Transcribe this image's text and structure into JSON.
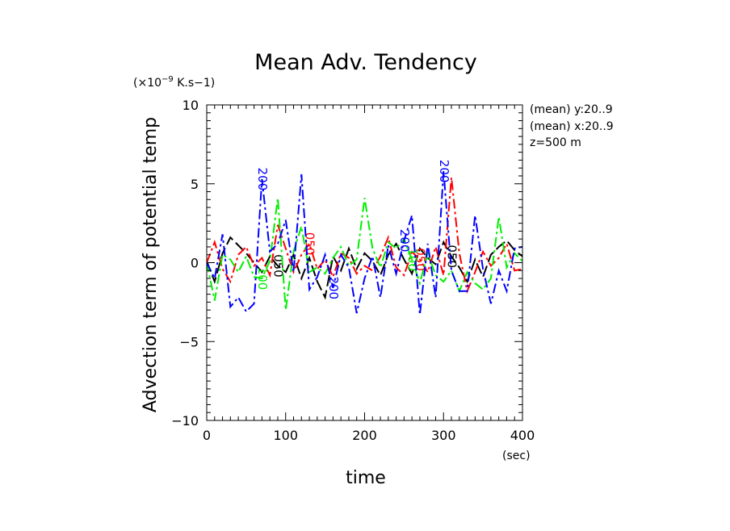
{
  "chart_data": {
    "type": "line",
    "title": "Mean Adv. Tendency",
    "xlabel": "time",
    "ylabel": "Advection term of potential temp",
    "x_unit": "(sec)",
    "y_unit_prefix": "(×10",
    "y_unit_exponent": "−9",
    "y_unit_suffix": " K.s−1)",
    "xlim": [
      0,
      400
    ],
    "ylim": [
      -10,
      10
    ],
    "x_ticks": [
      "0",
      "100",
      "200",
      "300",
      "400"
    ],
    "y_ticks": [
      "−10",
      "−5",
      "0",
      "5",
      "10"
    ],
    "x_tick_values": [
      0,
      100,
      200,
      300,
      400
    ],
    "y_tick_values": [
      -10,
      -5,
      0,
      5,
      10
    ],
    "grid": false,
    "info": [
      "(mean) y:20..9",
      "(mean) x:20..9",
      "z=500 m"
    ],
    "series": [
      {
        "label": "050",
        "color": "#000000",
        "dash": "14,5",
        "x": [
          0,
          10,
          20,
          30,
          40,
          50,
          60,
          70,
          80,
          90,
          100,
          110,
          120,
          130,
          140,
          150,
          160,
          170,
          180,
          190,
          200,
          210,
          220,
          230,
          240,
          250,
          260,
          270,
          280,
          290,
          300,
          310,
          320,
          330,
          340,
          350,
          360,
          370,
          380,
          390,
          400
        ],
        "values": [
          0.1,
          -1.2,
          0.6,
          1.6,
          1.1,
          0.6,
          0.0,
          -0.6,
          0.4,
          -0.2,
          -0.6,
          0.5,
          -1.0,
          0.3,
          -1.2,
          -2.2,
          0.4,
          -0.5,
          0.9,
          -0.4,
          0.6,
          0.1,
          -0.8,
          0.5,
          1.2,
          0.2,
          -0.7,
          0.9,
          0.3,
          -0.1,
          1.3,
          0.4,
          -0.3,
          -1.2,
          0.2,
          -0.9,
          0.5,
          1.0,
          1.4,
          0.8,
          0.4
        ],
        "marker_x": [
          90,
          310
        ]
      },
      {
        "label": "050",
        "color": "#ff0000",
        "dash": "12,4,3,4",
        "x": [
          0,
          10,
          20,
          30,
          40,
          50,
          60,
          70,
          80,
          90,
          100,
          110,
          120,
          130,
          140,
          150,
          160,
          170,
          180,
          190,
          200,
          210,
          220,
          230,
          240,
          250,
          260,
          270,
          280,
          290,
          300,
          310,
          320,
          330,
          340,
          350,
          360,
          370,
          380,
          390,
          400
        ],
        "values": [
          0.0,
          1.3,
          -0.4,
          -1.2,
          0.5,
          1.0,
          -0.2,
          0.3,
          -0.8,
          2.4,
          0.9,
          -0.6,
          0.5,
          1.2,
          -0.4,
          0.2,
          -0.9,
          0.6,
          0.3,
          -0.7,
          -0.2,
          -0.5,
          0.4,
          1.6,
          -0.3,
          -0.8,
          0.7,
          0.2,
          -0.6,
          1.0,
          -0.8,
          5.4,
          0.6,
          -1.8,
          -0.6,
          0.7,
          -0.2,
          0.3,
          1.2,
          -0.5,
          -0.4
        ],
        "marker_x": [
          130,
          270
        ]
      },
      {
        "label": "100",
        "color": "#00ee00",
        "dash": "12,4,3,4",
        "x": [
          0,
          10,
          20,
          30,
          40,
          50,
          60,
          70,
          80,
          90,
          100,
          110,
          120,
          130,
          140,
          150,
          160,
          170,
          180,
          190,
          200,
          210,
          220,
          230,
          240,
          250,
          260,
          270,
          280,
          290,
          300,
          310,
          320,
          330,
          340,
          350,
          360,
          370,
          380,
          390,
          400
        ],
        "values": [
          0.0,
          -2.4,
          0.5,
          0.2,
          -0.6,
          0.4,
          -0.9,
          -1.0,
          0.1,
          4.1,
          -3.0,
          0.7,
          2.3,
          -0.6,
          -0.3,
          -0.7,
          0.3,
          1.0,
          -0.2,
          0.2,
          4.1,
          0.9,
          -0.3,
          1.3,
          0.9,
          1.5,
          0.2,
          -1.3,
          0.6,
          -0.8,
          -1.2,
          -0.5,
          -1.8,
          -0.6,
          -1.3,
          -1.7,
          -1.0,
          2.9,
          -0.3,
          0.6,
          0.1
        ],
        "marker_x": [
          75,
          265
        ]
      },
      {
        "label": "200",
        "color": "#0000ff",
        "dash": "12,4,3,4",
        "x": [
          0,
          10,
          20,
          30,
          40,
          50,
          60,
          70,
          80,
          90,
          100,
          110,
          120,
          130,
          140,
          150,
          160,
          170,
          180,
          190,
          200,
          210,
          220,
          230,
          240,
          250,
          260,
          270,
          280,
          290,
          300,
          310,
          320,
          330,
          340,
          350,
          360,
          370,
          380,
          390,
          400
        ],
        "values": [
          0.0,
          -1.0,
          1.8,
          -2.8,
          -2.2,
          -3.1,
          -2.6,
          5.3,
          0.7,
          1.2,
          2.7,
          -0.6,
          5.6,
          -1.7,
          -0.9,
          0.5,
          -1.6,
          0.5,
          -0.3,
          -3.2,
          -1.0,
          0.4,
          -2.2,
          1.1,
          -0.7,
          1.4,
          3.0,
          -3.3,
          1.2,
          -2.2,
          5.8,
          -0.5,
          -1.8,
          -1.8,
          3.0,
          -0.4,
          -2.6,
          -0.5,
          -1.8,
          0.9,
          1.0
        ],
        "marker_x": [
          72,
          160,
          255,
          305
        ]
      }
    ]
  }
}
